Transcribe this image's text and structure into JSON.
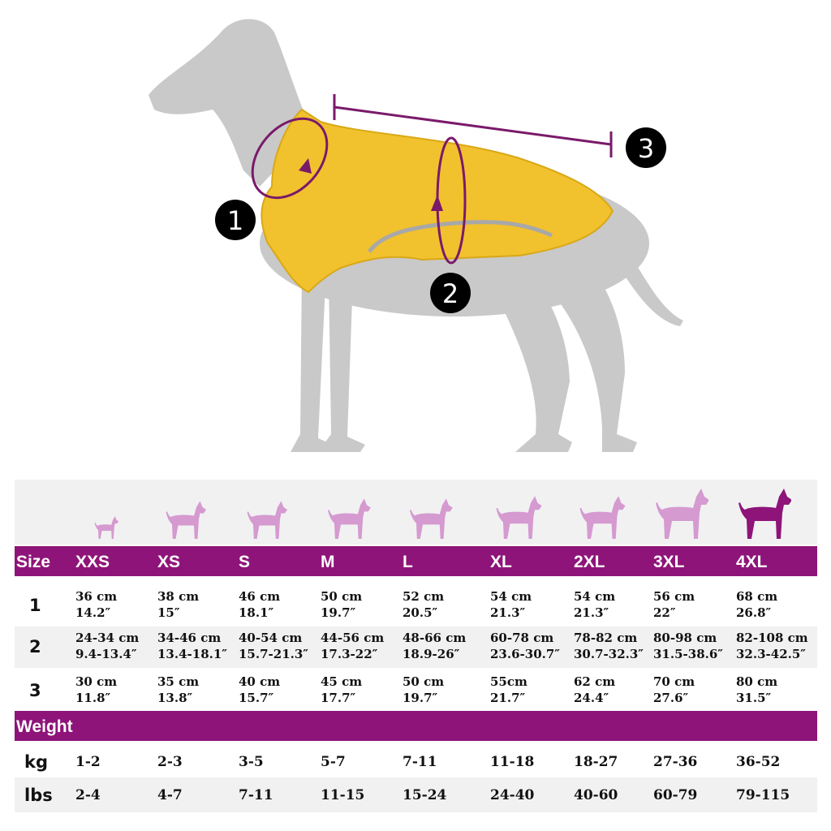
{
  "badges": [
    "1",
    "2",
    "3"
  ],
  "columns": [
    "XXS",
    "XS",
    "S",
    "M",
    "L",
    "XL",
    "2XL",
    "3XL",
    "4XL"
  ],
  "size_header": "Size",
  "rows": [
    {
      "label": "1",
      "cm": [
        "36 cm",
        "38 cm",
        "46 cm",
        "50 cm",
        "52 cm",
        "54 cm",
        "54 cm",
        "56 cm",
        "68 cm"
      ],
      "inch": [
        "14.2″",
        "15″",
        "18.1″",
        "19.7″",
        "20.5″",
        "21.3″",
        "21.3″",
        "22″",
        "26.8″"
      ]
    },
    {
      "label": "2",
      "cm": [
        "24-34 cm",
        "34-46 cm",
        "40-54 cm",
        "44-56 cm",
        "48-66 cm",
        "60-78 cm",
        "78-82 cm",
        "80-98 cm",
        "82-108 cm"
      ],
      "inch": [
        "9.4-13.4″",
        "13.4-18.1″",
        "15.7-21.3″",
        "17.3-22″",
        "18.9-26″",
        "23.6-30.7″",
        "30.7-32.3″",
        "31.5-38.6″",
        "32.3-42.5″"
      ]
    },
    {
      "label": "3",
      "cm": [
        "30 cm",
        "35 cm",
        "40 cm",
        "45 cm",
        "50 cm",
        "55cm",
        "62 cm",
        "70 cm",
        "80 cm"
      ],
      "inch": [
        "11.8″",
        "13.8″",
        "15.7″",
        "17.7″",
        "19.7″",
        "21.7″",
        "24.4″",
        "27.6″",
        "31.5″"
      ]
    }
  ],
  "weight_header": "Weight",
  "weight_rows": [
    {
      "label": "kg",
      "values": [
        "1-2",
        "2-3",
        "3-5",
        "5-7",
        "7-11",
        "11-18",
        "18-27",
        "27-36",
        "36-52"
      ]
    },
    {
      "label": "lbs",
      "values": [
        "2-4",
        "4-7",
        "7-11",
        "11-15",
        "15-24",
        "24-40",
        "40-60",
        "60-79",
        "79-115"
      ]
    }
  ],
  "colors": {
    "accent": "#8e1479",
    "size_icon_light": "#d59ad0",
    "size_icon_selected": "#8e1479",
    "dog_silhouette": "#c9c9c9",
    "coat": "#f2c12e",
    "badge": "#000000"
  },
  "icons": [
    "dog-measurement-illustration",
    "dog-size-icon"
  ]
}
